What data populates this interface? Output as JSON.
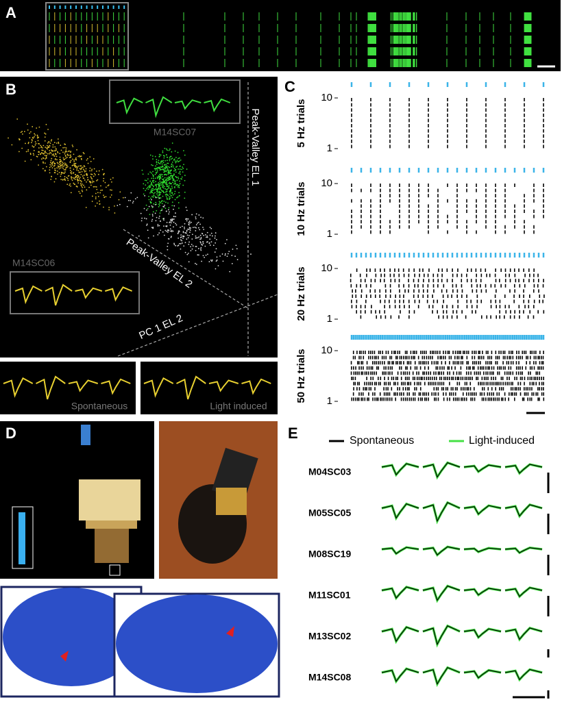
{
  "panel_a": {
    "label": "A"
  },
  "panel_b": {
    "label": "B",
    "upper_unit": "M14SC07",
    "lower_unit": "M14SC06",
    "axis_1": "Peak-Valley EL 1",
    "axis_2": "Peak-Valley EL 2",
    "axis_3": "PC 1 EL 2",
    "waveforms": [
      "Spontaneous",
      "Light induced"
    ]
  },
  "panel_c": {
    "label": "C",
    "rows": [
      {
        "label": "5 Hz trials",
        "yticks": [
          10,
          1
        ]
      },
      {
        "label": "10 Hz trials",
        "yticks": [
          10,
          1
        ]
      },
      {
        "label": "20 Hz trials",
        "yticks": [
          10,
          1
        ]
      },
      {
        "label": "50 Hz trials",
        "yticks": [
          10,
          1
        ]
      }
    ]
  },
  "panel_d": {
    "label": "D"
  },
  "panel_e": {
    "label": "E",
    "legend": [
      "Spontaneous",
      "Light-induced"
    ],
    "units": [
      "M04SC03",
      "M05SC05",
      "M08SC19",
      "M11SC01",
      "M13SC02",
      "M14SC08"
    ]
  }
}
